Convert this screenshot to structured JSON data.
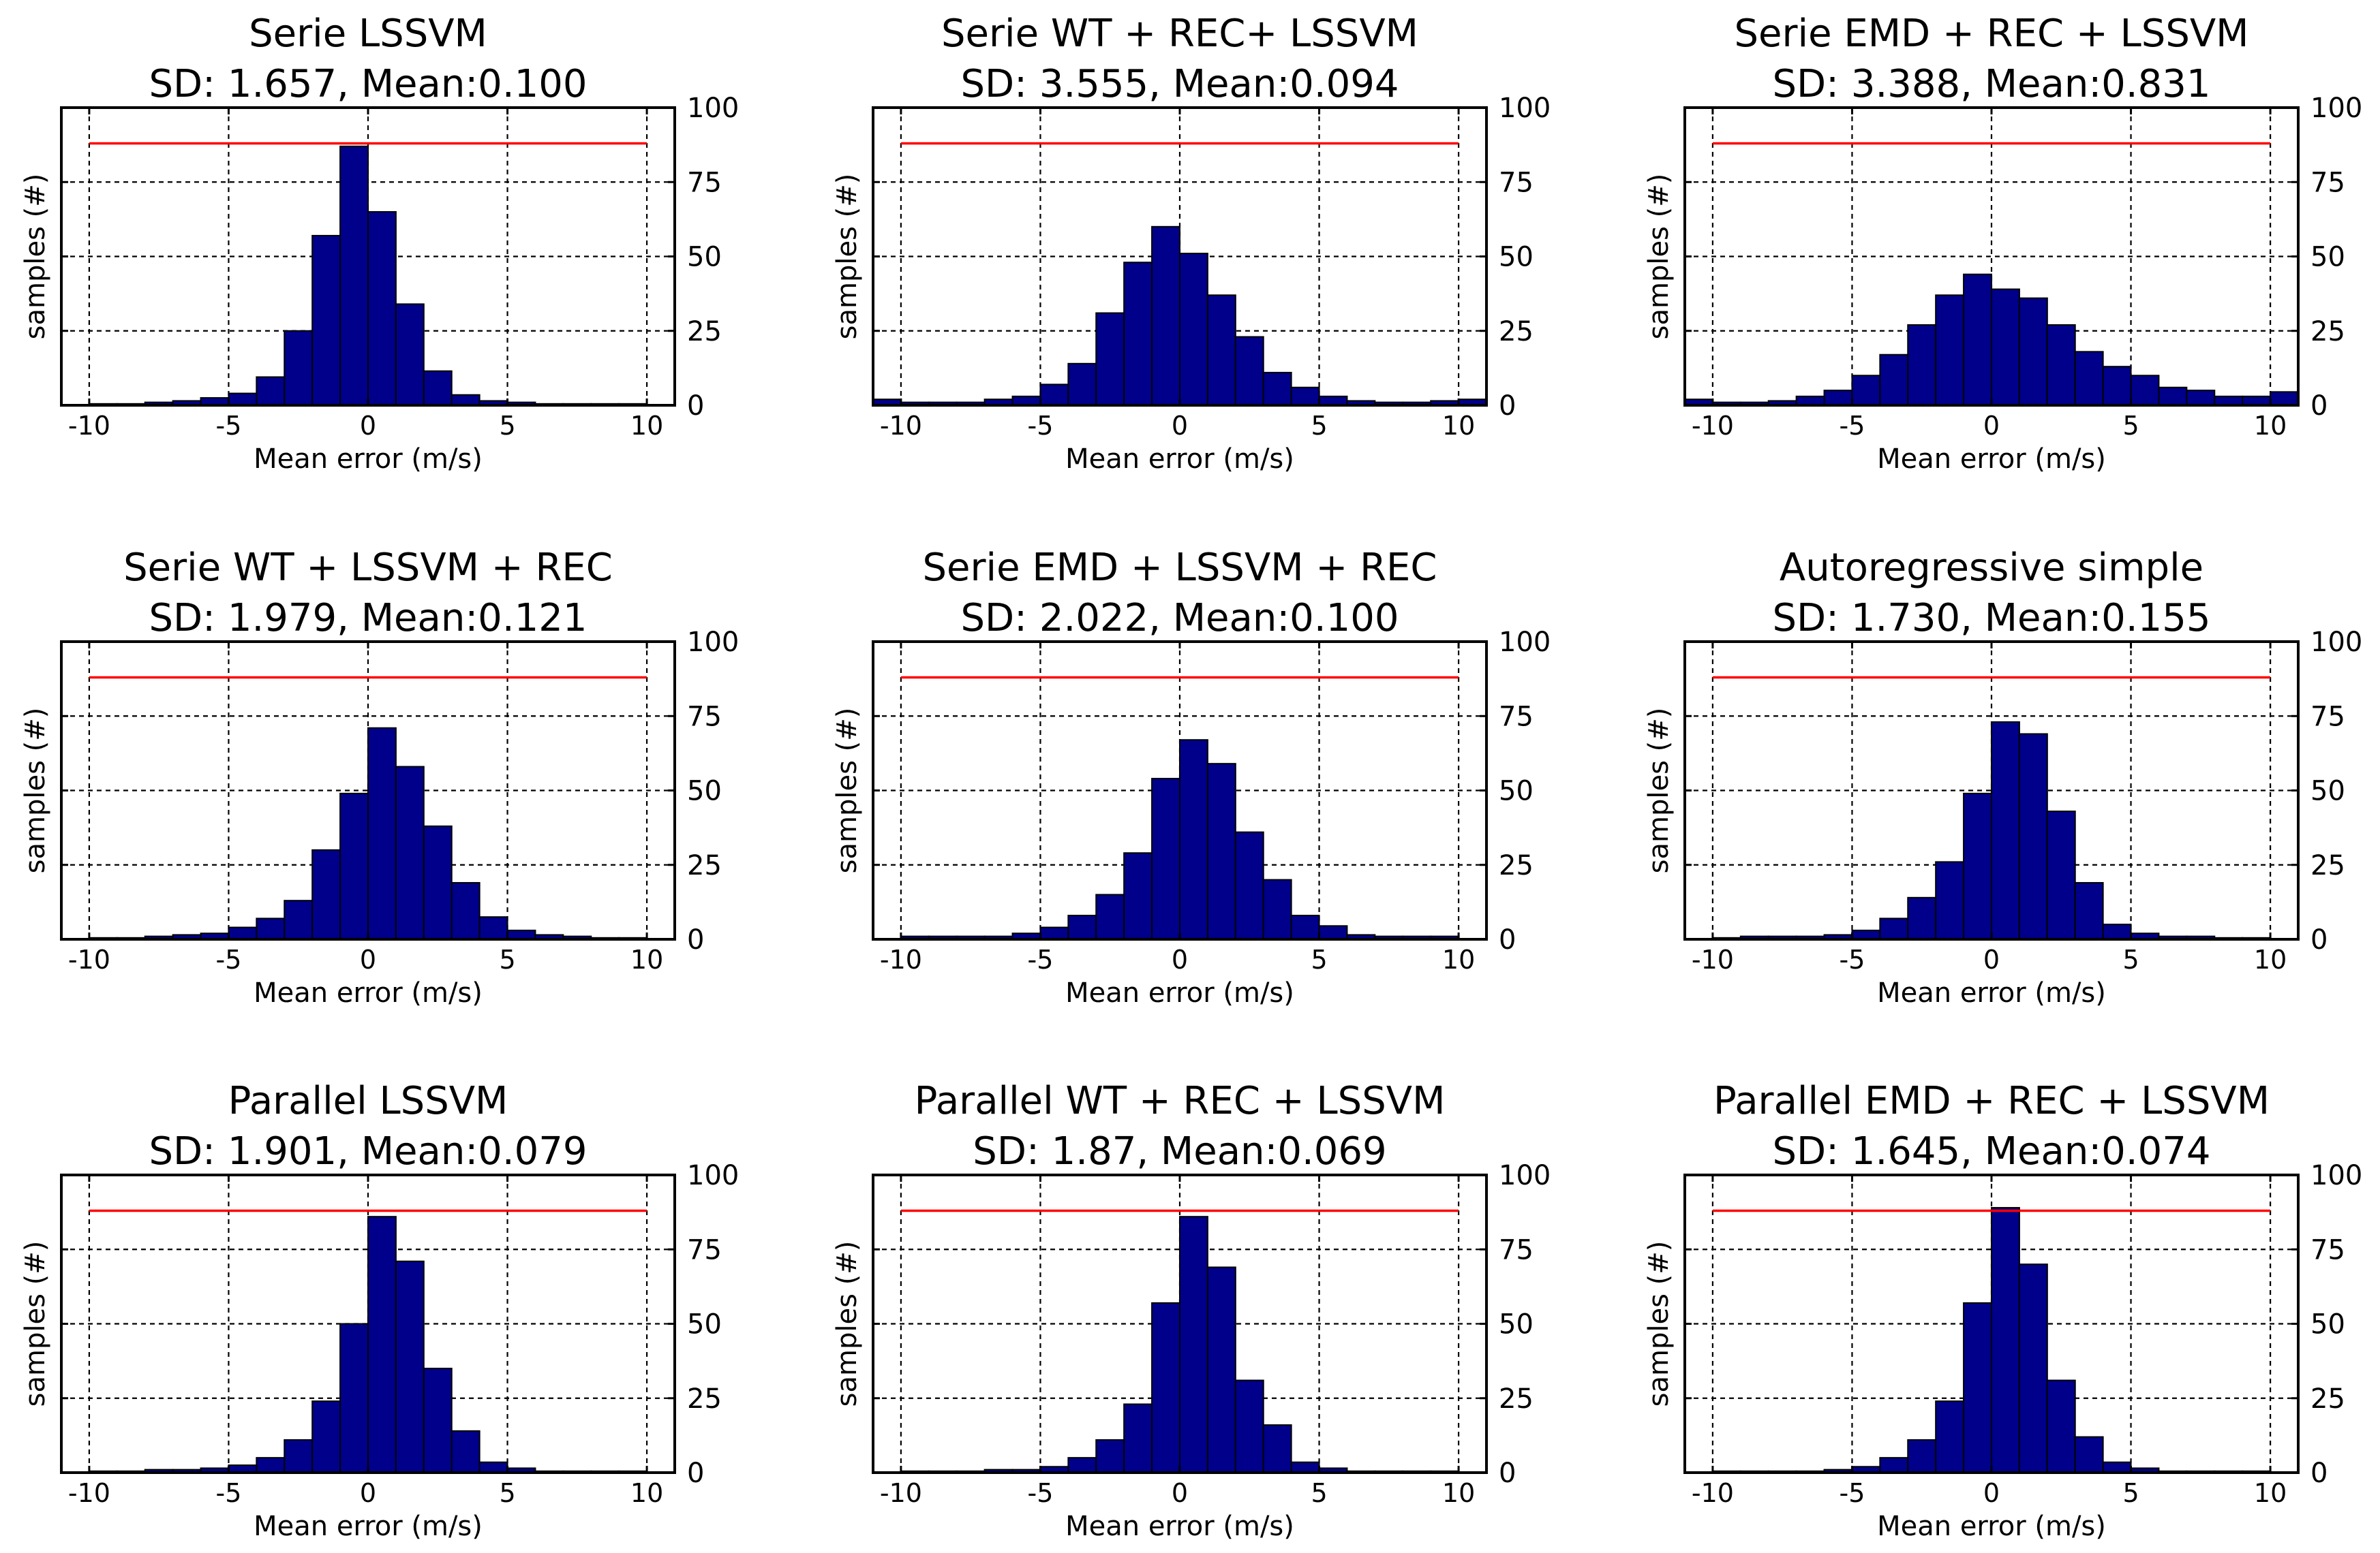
{
  "figure": {
    "bar_color": "#00008b",
    "bar_edge_color": "#000000",
    "reference_line_color": "#ff0000",
    "grid_style": "dashed black"
  },
  "chart_data": [
    {
      "type": "bar",
      "title": "Serie LSSVM",
      "subtitle": "SD: 1.657, Mean:0.100",
      "xlabel": "Mean error (m/s)",
      "ylabel": "samples (#)",
      "xlim": [
        -11,
        11
      ],
      "ylim": [
        0,
        100
      ],
      "xticks": [
        -10,
        -5,
        0,
        5,
        10
      ],
      "xtick_labels": [
        "-10",
        "-5",
        "0",
        "5",
        "10"
      ],
      "yticks": [
        0,
        25,
        50,
        75,
        100
      ],
      "ytick_labels": [
        "0",
        "25",
        "50",
        "75",
        "100"
      ],
      "grid": true,
      "reference_line": 88,
      "reference_line_range": [
        -10,
        10
      ],
      "bin_edges": [
        -10,
        -9,
        -8,
        -7,
        -6,
        -5,
        -4,
        -3,
        -2,
        -1,
        0,
        1,
        2,
        3,
        4,
        5,
        6,
        7,
        8,
        9
      ],
      "bin_width": 1,
      "values": [
        0.5,
        0.5,
        1,
        1.5,
        2.5,
        4,
        9.5,
        25,
        57,
        87,
        65,
        34,
        11.5,
        3.5,
        1.5,
        1,
        0.5,
        0.5,
        0.5,
        0.5
      ]
    },
    {
      "type": "bar",
      "title": "Serie WT  + REC+ LSSVM",
      "subtitle": "SD: 3.555, Mean:0.094",
      "xlabel": "Mean error (m/s)",
      "ylabel": "samples (#)",
      "xlim": [
        -11,
        11
      ],
      "ylim": [
        0,
        100
      ],
      "xticks": [
        -10,
        -5,
        0,
        5,
        10
      ],
      "xtick_labels": [
        "-10",
        "-5",
        "0",
        "5",
        "10"
      ],
      "yticks": [
        0,
        25,
        50,
        75,
        100
      ],
      "ytick_labels": [
        "0",
        "25",
        "50",
        "75",
        "100"
      ],
      "grid": true,
      "reference_line": 88,
      "reference_line_range": [
        -10,
        10
      ],
      "bin_edges": [
        -11,
        -10,
        -9,
        -8,
        -7,
        -6,
        -5,
        -4,
        -3,
        -2,
        -1,
        0,
        1,
        2,
        3,
        4,
        5,
        6,
        7,
        8,
        9,
        10
      ],
      "bin_width": 1,
      "values": [
        2,
        1,
        1,
        1,
        2,
        3,
        7,
        14,
        31,
        48,
        60,
        51,
        37,
        23,
        11,
        6,
        3,
        1.5,
        1,
        1,
        1.5,
        2
      ]
    },
    {
      "type": "bar",
      "title": "Serie EMD + REC + LSSVM",
      "subtitle": "SD: 3.388, Mean:0.831",
      "xlabel": "Mean error (m/s)",
      "ylabel": "samples (#)",
      "xlim": [
        -11,
        11
      ],
      "ylim": [
        0,
        100
      ],
      "xticks": [
        -10,
        -5,
        0,
        5,
        10
      ],
      "xtick_labels": [
        "-10",
        "-5",
        "0",
        "5",
        "10"
      ],
      "yticks": [
        0,
        25,
        50,
        75,
        100
      ],
      "ytick_labels": [
        "0",
        "25",
        "50",
        "75",
        "100"
      ],
      "grid": true,
      "reference_line": 88,
      "reference_line_range": [
        -10,
        10
      ],
      "bin_edges": [
        -11,
        -10,
        -9,
        -8,
        -7,
        -6,
        -5,
        -4,
        -3,
        -2,
        -1,
        0,
        1,
        2,
        3,
        4,
        5,
        6,
        7,
        8,
        9,
        10
      ],
      "bin_width": 1,
      "values": [
        2,
        1,
        1,
        1.5,
        3,
        5,
        10,
        17,
        27,
        37,
        44,
        39,
        36,
        27,
        18,
        13,
        10,
        6,
        5,
        3,
        3,
        4.5
      ]
    },
    {
      "type": "bar",
      "title": "Serie WT + LSSVM + REC",
      "subtitle": "SD: 1.979, Mean:0.121",
      "xlabel": "Mean error (m/s)",
      "ylabel": "samples (#)",
      "xlim": [
        -11,
        11
      ],
      "ylim": [
        0,
        100
      ],
      "xticks": [
        -10,
        -5,
        0,
        5,
        10
      ],
      "xtick_labels": [
        "-10",
        "-5",
        "0",
        "5",
        "10"
      ],
      "yticks": [
        0,
        25,
        50,
        75,
        100
      ],
      "ytick_labels": [
        "0",
        "25",
        "50",
        "75",
        "100"
      ],
      "grid": true,
      "reference_line": 88,
      "reference_line_range": [
        -10,
        10
      ],
      "bin_edges": [
        -10,
        -9,
        -8,
        -7,
        -6,
        -5,
        -4,
        -3,
        -2,
        -1,
        0,
        1,
        2,
        3,
        4,
        5,
        6,
        7,
        8,
        9
      ],
      "bin_width": 1,
      "values": [
        0.5,
        0.5,
        1,
        1.5,
        2,
        4,
        7,
        13,
        30,
        49,
        71,
        58,
        38,
        19,
        7.5,
        3,
        1.5,
        1,
        0.5,
        0.5
      ]
    },
    {
      "type": "bar",
      "title": "Serie EMD + LSSVM + REC",
      "subtitle": "SD: 2.022, Mean:0.100",
      "xlabel": "Mean error (m/s)",
      "ylabel": "samples (#)",
      "xlim": [
        -11,
        11
      ],
      "ylim": [
        0,
        100
      ],
      "xticks": [
        -10,
        -5,
        0,
        5,
        10
      ],
      "xtick_labels": [
        "-10",
        "-5",
        "0",
        "5",
        "10"
      ],
      "yticks": [
        0,
        25,
        50,
        75,
        100
      ],
      "ytick_labels": [
        "0",
        "25",
        "50",
        "75",
        "100"
      ],
      "grid": true,
      "reference_line": 88,
      "reference_line_range": [
        -10,
        10
      ],
      "bin_edges": [
        -10,
        -9,
        -8,
        -7,
        -6,
        -5,
        -4,
        -3,
        -2,
        -1,
        0,
        1,
        2,
        3,
        4,
        5,
        6,
        7,
        8,
        9
      ],
      "bin_width": 1,
      "values": [
        1,
        1,
        1,
        1,
        2,
        4,
        8,
        15,
        29,
        54,
        67,
        59,
        36,
        20,
        8,
        4.5,
        1.5,
        1,
        1,
        1
      ]
    },
    {
      "type": "bar",
      "title": "Autoregressive simple",
      "subtitle": "SD: 1.730, Mean:0.155",
      "xlabel": "Mean error (m/s)",
      "ylabel": "samples (#)",
      "xlim": [
        -11,
        11
      ],
      "ylim": [
        0,
        100
      ],
      "xticks": [
        -10,
        -5,
        0,
        5,
        10
      ],
      "xtick_labels": [
        "-10",
        "-5",
        "0",
        "5",
        "10"
      ],
      "yticks": [
        0,
        25,
        50,
        75,
        100
      ],
      "ytick_labels": [
        "0",
        "25",
        "50",
        "75",
        "100"
      ],
      "grid": true,
      "reference_line": 88,
      "reference_line_range": [
        -10,
        10
      ],
      "bin_edges": [
        -10,
        -9,
        -8,
        -7,
        -6,
        -5,
        -4,
        -3,
        -2,
        -1,
        0,
        1,
        2,
        3,
        4,
        5,
        6,
        7,
        8,
        9
      ],
      "bin_width": 1,
      "values": [
        0.5,
        1,
        1,
        1,
        1.5,
        3,
        7,
        14,
        26,
        49,
        73,
        69,
        43,
        19,
        5,
        2,
        1,
        1,
        0.5,
        0.5
      ]
    },
    {
      "type": "bar",
      "title": "Parallel LSSVM",
      "subtitle": "SD: 1.901, Mean:0.079",
      "xlabel": "Mean error (m/s)",
      "ylabel": "samples (#)",
      "xlim": [
        -11,
        11
      ],
      "ylim": [
        0,
        100
      ],
      "xticks": [
        -10,
        -5,
        0,
        5,
        10
      ],
      "xtick_labels": [
        "-10",
        "-5",
        "0",
        "5",
        "10"
      ],
      "yticks": [
        0,
        25,
        50,
        75,
        100
      ],
      "ytick_labels": [
        "0",
        "25",
        "50",
        "75",
        "100"
      ],
      "grid": true,
      "reference_line": 88,
      "reference_line_range": [
        -10,
        10
      ],
      "bin_edges": [
        -10,
        -9,
        -8,
        -7,
        -6,
        -5,
        -4,
        -3,
        -2,
        -1,
        0,
        1,
        2,
        3,
        4,
        5,
        6,
        7,
        8,
        9
      ],
      "bin_width": 1,
      "values": [
        0.5,
        0.5,
        1,
        1,
        1.5,
        2.5,
        5,
        11,
        24,
        50,
        86,
        71,
        35,
        14,
        3.5,
        1.5,
        0.5,
        0.5,
        0.5,
        0.5
      ]
    },
    {
      "type": "bar",
      "title": "Parallel WT + REC + LSSVM",
      "subtitle": "SD: 1.87, Mean:0.069",
      "xlabel": "Mean error (m/s)",
      "ylabel": "samples (#)",
      "xlim": [
        -11,
        11
      ],
      "ylim": [
        0,
        100
      ],
      "xticks": [
        -10,
        -5,
        0,
        5,
        10
      ],
      "xtick_labels": [
        "-10",
        "-5",
        "0",
        "5",
        "10"
      ],
      "yticks": [
        0,
        25,
        50,
        75,
        100
      ],
      "ytick_labels": [
        "0",
        "25",
        "50",
        "75",
        "100"
      ],
      "grid": true,
      "reference_line": 88,
      "reference_line_range": [
        -10,
        10
      ],
      "bin_edges": [
        -10,
        -9,
        -8,
        -7,
        -6,
        -5,
        -4,
        -3,
        -2,
        -1,
        0,
        1,
        2,
        3,
        4,
        5,
        6,
        7,
        8,
        9
      ],
      "bin_width": 1,
      "values": [
        0.5,
        0.5,
        0.5,
        1,
        1,
        2,
        5,
        11,
        23,
        57,
        86,
        69,
        31,
        16,
        3.5,
        1.5,
        0.5,
        0.5,
        0.5,
        0.5
      ]
    },
    {
      "type": "bar",
      "title": "Parallel EMD + REC + LSSVM",
      "subtitle": "SD: 1.645, Mean:0.074",
      "xlabel": "Mean error (m/s)",
      "ylabel": "samples (#)",
      "xlim": [
        -11,
        11
      ],
      "ylim": [
        0,
        100
      ],
      "xticks": [
        -10,
        -5,
        0,
        5,
        10
      ],
      "xtick_labels": [
        "-10",
        "-5",
        "0",
        "5",
        "10"
      ],
      "yticks": [
        0,
        25,
        50,
        75,
        100
      ],
      "ytick_labels": [
        "0",
        "25",
        "50",
        "75",
        "100"
      ],
      "grid": true,
      "reference_line": 88,
      "reference_line_range": [
        -10,
        10
      ],
      "bin_edges": [
        -10,
        -9,
        -8,
        -7,
        -6,
        -5,
        -4,
        -3,
        -2,
        -1,
        0,
        1,
        2,
        3,
        4,
        5,
        6,
        7,
        8,
        9
      ],
      "bin_width": 1,
      "values": [
        0.5,
        0.5,
        0.5,
        0.5,
        1,
        2,
        5,
        11,
        24,
        57,
        89,
        70,
        31,
        12,
        3.5,
        1.5,
        0.5,
        0.5,
        0.5,
        0.5
      ]
    }
  ]
}
